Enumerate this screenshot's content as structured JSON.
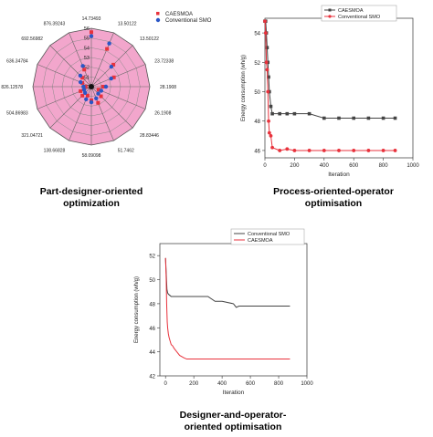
{
  "captions": {
    "radar": [
      "Part-designer-oriented",
      "optimization"
    ],
    "process": [
      "Process-oriented-operator",
      "optimisation"
    ],
    "designer": [
      "Designer-and-operator-",
      "oriented optimisation"
    ]
  },
  "colors": {
    "caesmoa": "#e8323c",
    "conventional": "#2a56c6",
    "grey_line": "#444444",
    "pink": "#f2a6cc"
  },
  "chart_data": [
    {
      "type": "radar",
      "title": "",
      "legend": [
        "CAESMOA",
        "Conventional SMO"
      ],
      "legend_position": "top-right",
      "radial_ticks": [
        "50",
        "51",
        "52",
        "53",
        "54",
        "55",
        "56"
      ],
      "r_range": [
        50,
        56
      ],
      "spoke_labels": [
        "14.73493",
        "13.50122",
        "13.50122",
        "23.72338",
        "28.1908",
        "26.1908",
        "28.83446",
        "51.7462",
        "58.09098",
        "138.66828",
        "321.04721",
        "504.86983",
        "826.12578",
        "636.34784",
        "692.56982",
        "876.39243"
      ],
      "series": [
        {
          "name": "CAESMOA",
          "values": [
            55.6,
            54.2,
            53.2,
            52.5,
            51.2,
            50.8,
            51.4,
            51.8,
            51.4,
            51.0,
            51.3,
            51.2,
            50.6,
            51.0,
            51.3,
            51.9
          ]
        },
        {
          "name": "Conventional SMO",
          "values": [
            55.2,
            54.8,
            52.9,
            52.2,
            51.5,
            51.1,
            51.0,
            51.3,
            51.6,
            51.4,
            50.9,
            50.8,
            50.8,
            51.2,
            51.6,
            52.3
          ]
        }
      ]
    },
    {
      "type": "line",
      "xlabel": "Iteration",
      "ylabel": "Energy consumption (wh/g)",
      "xlim": [
        0,
        1000
      ],
      "ylim": [
        45.5,
        55
      ],
      "xticks": [
        0,
        200,
        400,
        600,
        800,
        1000
      ],
      "yticks": [
        46,
        48,
        50,
        52,
        54
      ],
      "legend_position": "top-right",
      "series": [
        {
          "name": "CAESMOA",
          "x": [
            0,
            5,
            10,
            15,
            20,
            25,
            30,
            40,
            50,
            100,
            150,
            200,
            300,
            400,
            500,
            600,
            700,
            800,
            880
          ],
          "y": [
            54.8,
            54.8,
            54.0,
            53.0,
            52.0,
            51.0,
            50.0,
            49.0,
            48.5,
            48.5,
            48.5,
            48.5,
            48.5,
            48.2,
            48.2,
            48.2,
            48.2,
            48.2,
            48.2
          ]
        },
        {
          "name": "Conventional SMO",
          "x": [
            0,
            5,
            10,
            15,
            20,
            25,
            30,
            40,
            50,
            100,
            150,
            200,
            300,
            400,
            500,
            600,
            700,
            800,
            880
          ],
          "y": [
            54.8,
            54.0,
            52.0,
            51.5,
            50.0,
            48.0,
            47.2,
            47.0,
            46.2,
            46.0,
            46.1,
            46.0,
            46.0,
            46.0,
            46.0,
            46.0,
            46.0,
            46.0,
            46.0
          ]
        }
      ]
    },
    {
      "type": "line",
      "xlabel": "Iteration",
      "ylabel": "Energy consumption (wh/g)",
      "xlim": [
        -40,
        1000
      ],
      "ylim": [
        42,
        53
      ],
      "xticks": [
        0,
        200,
        400,
        600,
        800,
        1000
      ],
      "yticks": [
        42,
        44,
        46,
        48,
        50,
        52
      ],
      "legend_position": "top-right",
      "series": [
        {
          "name": "Conventional SMO",
          "x": [
            0,
            5,
            10,
            15,
            20,
            30,
            40,
            60,
            100,
            200,
            300,
            350,
            400,
            480,
            500,
            520,
            600,
            700,
            800,
            850,
            880
          ],
          "y": [
            51.8,
            50.5,
            49.2,
            48.9,
            48.8,
            48.7,
            48.6,
            48.6,
            48.6,
            48.6,
            48.6,
            48.2,
            48.2,
            48.0,
            47.7,
            47.8,
            47.8,
            47.8,
            47.8,
            47.8,
            47.8
          ]
        },
        {
          "name": "CAESMOA",
          "x": [
            0,
            5,
            8,
            12,
            15,
            20,
            25,
            30,
            35,
            40,
            50,
            60,
            80,
            100,
            130,
            150,
            200,
            400,
            600,
            880
          ],
          "y": [
            51.8,
            50.0,
            48.0,
            46.5,
            46.0,
            45.5,
            45.2,
            45.0,
            44.8,
            44.6,
            44.5,
            44.3,
            44.0,
            43.7,
            43.5,
            43.4,
            43.4,
            43.4,
            43.4,
            43.4
          ]
        }
      ]
    }
  ]
}
